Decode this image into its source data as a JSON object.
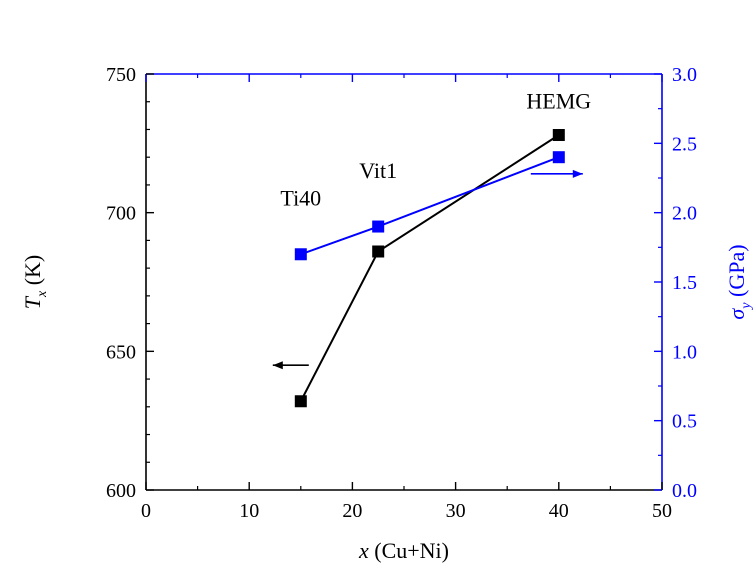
{
  "chart_data": {
    "type": "line",
    "x_axis": {
      "label_var": "x",
      "label_rest": " (Cu+Ni)",
      "lim": [
        0,
        50
      ],
      "ticks": [
        0,
        10,
        20,
        30,
        40,
        50
      ],
      "tick_labels": [
        "0",
        "10",
        "20",
        "30",
        "40",
        "50"
      ]
    },
    "y_left": {
      "label_var": "T",
      "label_sub": "x",
      "label_rest": " (K)",
      "lim": [
        600,
        750
      ],
      "ticks": [
        600,
        650,
        700,
        750
      ],
      "tick_labels": [
        "600",
        "650",
        "700",
        "750"
      ],
      "color": "#000000"
    },
    "y_right": {
      "label_var": "σ",
      "label_sub": "y",
      "label_rest": " (GPa)",
      "lim": [
        0,
        3
      ],
      "ticks": [
        0,
        0.5,
        1,
        1.5,
        2,
        2.5,
        3
      ],
      "tick_labels": [
        "0.0",
        "0.5",
        "1.0",
        "1.5",
        "2.0",
        "2.5",
        "3.0"
      ],
      "color": "#0000ff"
    },
    "series": [
      {
        "axis": "left",
        "color": "#000000",
        "x": [
          15,
          22.5,
          40
        ],
        "y": [
          632,
          686,
          728
        ]
      },
      {
        "axis": "right",
        "color": "#0000ff",
        "x": [
          15,
          22.5,
          40
        ],
        "y": [
          1.7,
          1.9,
          2.4
        ]
      }
    ],
    "annotations": [
      {
        "text": "Ti40",
        "x": 15,
        "y_right": 2.05
      },
      {
        "text": "Vit1",
        "x": 22.5,
        "y_right": 2.25
      },
      {
        "text": "HEMG",
        "x": 40,
        "y_right": 2.75
      }
    ],
    "arrows": [
      {
        "series": "left",
        "direction": "left",
        "x": 15,
        "y_left": 645
      },
      {
        "series": "right",
        "direction": "right",
        "x": 40,
        "y_right": 2.28
      }
    ]
  }
}
